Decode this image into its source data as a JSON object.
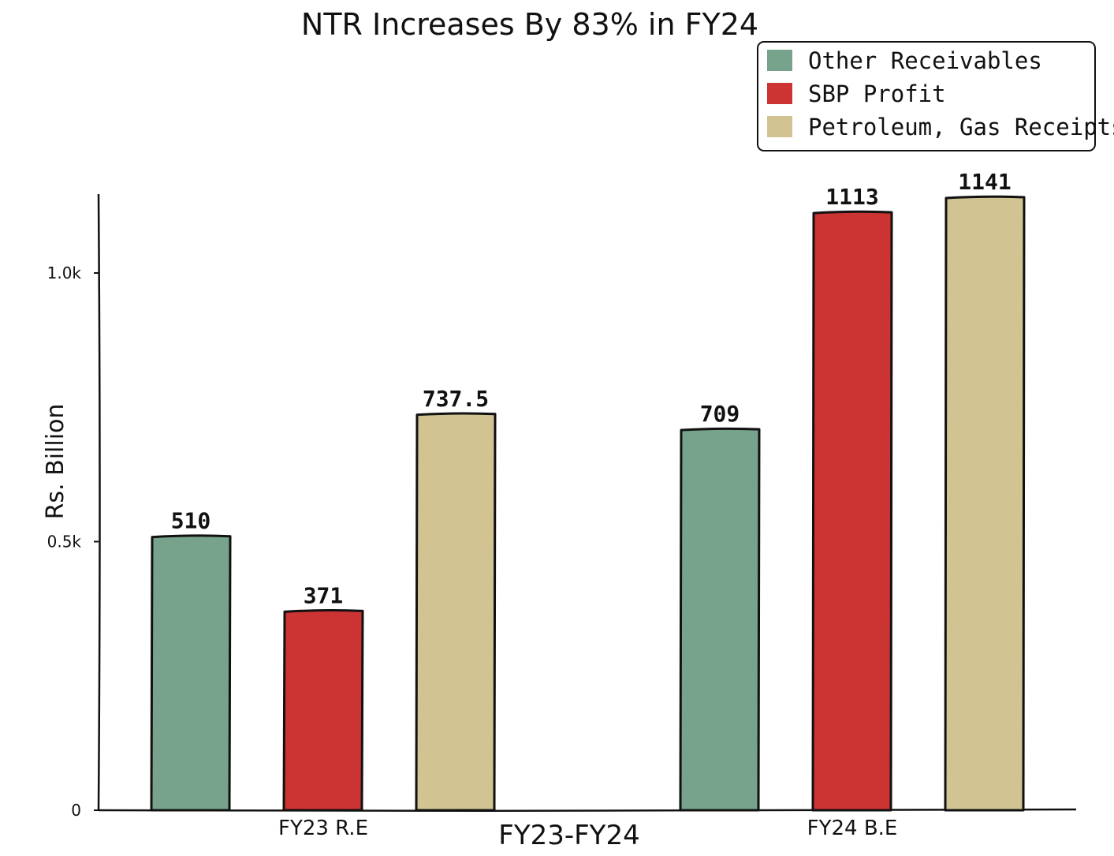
{
  "chart_data": {
    "type": "bar",
    "title": "NTR Increases By 83% in FY24",
    "xlabel": "FY23-FY24",
    "ylabel": "Rs. Billion",
    "categories": [
      "FY23 R.E",
      "FY24 B.E"
    ],
    "series": [
      {
        "name": "Other Receivables",
        "color": "#77a38c",
        "values": [
          510,
          709
        ],
        "labels": [
          "510",
          "709"
        ]
      },
      {
        "name": "SBP Profit",
        "color": "#cc3333",
        "values": [
          371,
          1113
        ],
        "labels": [
          "371",
          "1113"
        ]
      },
      {
        "name": "Petroleum, Gas Receipts",
        "color": "#d1c492",
        "values": [
          737.5,
          1141
        ],
        "labels": [
          "737.5",
          "1141"
        ]
      }
    ],
    "ylim": [
      0,
      1141
    ],
    "yticks": [
      {
        "value": 0,
        "label": "0"
      },
      {
        "value": 500,
        "label": "0.5k"
      },
      {
        "value": 1000,
        "label": "1.0k"
      }
    ],
    "grid": false,
    "legend_position": "top-right",
    "style": "xkcd"
  }
}
